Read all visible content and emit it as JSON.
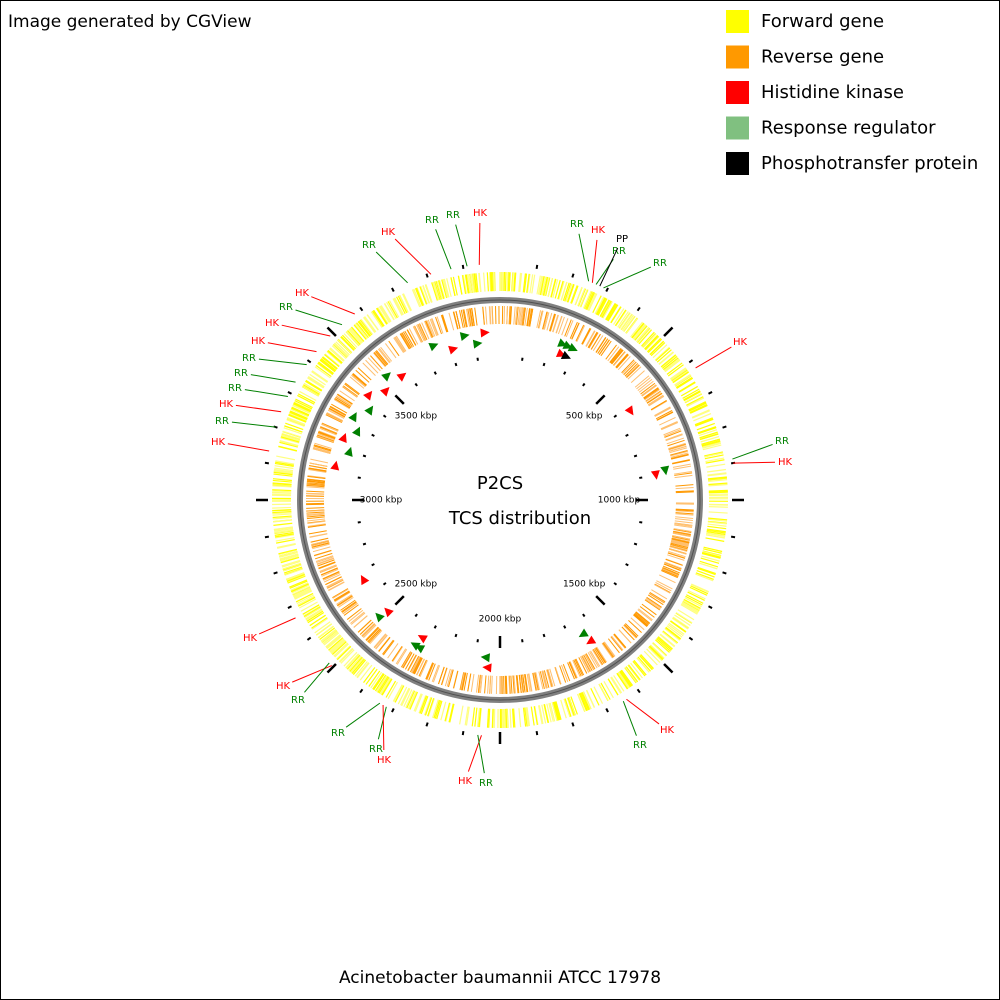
{
  "header": {
    "title": "Image generated by CGView"
  },
  "legend": [
    {
      "name": "Forward gene",
      "color": "#ffff00"
    },
    {
      "name": "Reverse gene",
      "color": "#ff9900"
    },
    {
      "name": "Histidine kinase",
      "color": "#ff0000"
    },
    {
      "name": "Response regulator",
      "color": "#80c080"
    },
    {
      "name": "Phosphotransfer protein",
      "color": "#000000"
    }
  ],
  "map": {
    "center_title": "P2CS",
    "center_subtitle": "TCS distribution",
    "range_kbp": [
      0,
      4000
    ],
    "ticks": [
      {
        "value": 500,
        "label": "500 kbp"
      },
      {
        "value": 1000,
        "label": "1000 kbp"
      },
      {
        "value": 1500,
        "label": "1500 kbp"
      },
      {
        "value": 2000,
        "label": "2000 kbp"
      },
      {
        "value": 2500,
        "label": "2500 kbp"
      },
      {
        "value": 3000,
        "label": "3000 kbp"
      },
      {
        "value": 3500,
        "label": "3500 kbp"
      }
    ],
    "features": [
      {
        "label": "RR",
        "kbp": 245,
        "color": "#008000"
      },
      {
        "label": "HK",
        "kbp": 256,
        "color": "#ff0000"
      },
      {
        "label": "RR",
        "kbp": 267,
        "color": "#008000"
      },
      {
        "label": "PP",
        "kbp": 278,
        "color": "#000000"
      },
      {
        "label": "RR",
        "kbp": 289,
        "color": "#008000"
      },
      {
        "label": "HK",
        "kbp": 622,
        "color": "#ff0000"
      },
      {
        "label": "RR",
        "kbp": 889,
        "color": "#008000"
      },
      {
        "label": "HK",
        "kbp": 900,
        "color": "#ff0000"
      },
      {
        "label": "HK",
        "kbp": 1640,
        "color": "#ff0000"
      },
      {
        "label": "RR",
        "kbp": 1650,
        "color": "#008000"
      },
      {
        "label": "HK",
        "kbp": 2050,
        "color": "#ff0000"
      },
      {
        "label": "RR",
        "kbp": 2060,
        "color": "#008000"
      },
      {
        "label": "RR",
        "kbp": 2320,
        "color": "#008000"
      },
      {
        "label": "HK",
        "kbp": 2330,
        "color": "#ff0000"
      },
      {
        "label": "RR",
        "kbp": 2340,
        "color": "#008000"
      },
      {
        "label": "HK",
        "kbp": 2505,
        "color": "#ff0000"
      },
      {
        "label": "RR",
        "kbp": 2515,
        "color": "#008000"
      },
      {
        "label": "HK",
        "kbp": 2667,
        "color": "#ff0000"
      },
      {
        "label": "HK",
        "kbp": 3133,
        "color": "#ff0000"
      },
      {
        "label": "RR",
        "kbp": 3200,
        "color": "#008000"
      },
      {
        "label": "HK",
        "kbp": 3244,
        "color": "#ff0000"
      },
      {
        "label": "RR",
        "kbp": 3289,
        "color": "#008000"
      },
      {
        "label": "RR",
        "kbp": 3333,
        "color": "#008000"
      },
      {
        "label": "RR",
        "kbp": 3389,
        "color": "#008000"
      },
      {
        "label": "HK",
        "kbp": 3433,
        "color": "#ff0000"
      },
      {
        "label": "HK",
        "kbp": 3489,
        "color": "#ff0000"
      },
      {
        "label": "RR",
        "kbp": 3533,
        "color": "#008000"
      },
      {
        "label": "HK",
        "kbp": 3578,
        "color": "#ff0000"
      },
      {
        "label": "RR",
        "kbp": 3744,
        "color": "#008000"
      },
      {
        "label": "HK",
        "kbp": 3811,
        "color": "#ff0000"
      },
      {
        "label": "RR",
        "kbp": 3867,
        "color": "#008000"
      },
      {
        "label": "RR",
        "kbp": 3911,
        "color": "#008000"
      },
      {
        "label": "HK",
        "kbp": 3944,
        "color": "#ff0000"
      }
    ]
  },
  "caption": "Acinetobacter baumannii ATCC 17978"
}
